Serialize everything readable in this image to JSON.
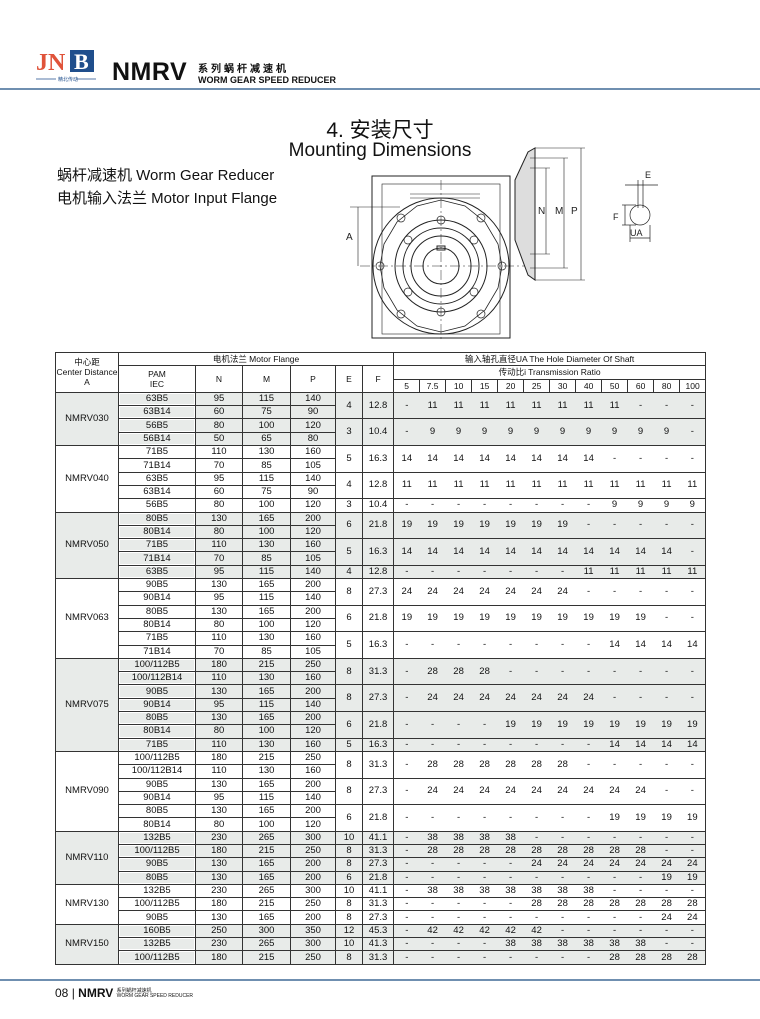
{
  "header": {
    "logo_text": "JNB",
    "logo_sub": "精北传动",
    "brand": "NMRV",
    "brand_cn": "系列蜗杆减速机",
    "brand_en": "WORM GEAR SPEED REDUCER",
    "accent_color": "#6f8fb0"
  },
  "section": {
    "title_cn": "4. 安装尺寸",
    "title_en": "Mounting Dimensions",
    "subtitle1": "蜗杆减速机 Worm Gear Reducer",
    "subtitle2": "电机输入法兰 Motor Input Flange"
  },
  "diagram": {
    "label_a": "A",
    "label_n": "N",
    "label_m": "M",
    "label_p": "P",
    "label_e": "E",
    "label_f": "F",
    "label_ua": "UA"
  },
  "table": {
    "h_center_cn": "中心距",
    "h_center_en": "Center Distance",
    "h_center_a": "A",
    "h_flange": "电机法兰 Motor Flange",
    "h_pam": "PAM",
    "h_iec": "IEC",
    "h_n": "N",
    "h_m": "M",
    "h_p": "P",
    "h_e": "E",
    "h_f": "F",
    "h_shaft": "输入轴孔直径UA  The Hole Diameter Of Shaft",
    "h_ratio": "传动比i  Transmission Ratio",
    "ratios": [
      "5",
      "7.5",
      "10",
      "15",
      "20",
      "25",
      "30",
      "40",
      "50",
      "60",
      "80",
      "100"
    ],
    "groups": [
      {
        "model": "NMRV030",
        "blocks": [
          {
            "e": "4",
            "f": "12.8",
            "ua": [
              "-",
              "11",
              "11",
              "11",
              "11",
              "11",
              "11",
              "11",
              "11",
              "-",
              "-",
              "-"
            ],
            "flanges": [
              [
                "63B5",
                "95",
                "115",
                "140"
              ],
              [
                "63B14",
                "60",
                "75",
                "90"
              ]
            ]
          },
          {
            "e": "3",
            "f": "10.4",
            "ua": [
              "-",
              "9",
              "9",
              "9",
              "9",
              "9",
              "9",
              "9",
              "9",
              "9",
              "9",
              "-"
            ],
            "flanges": [
              [
                "56B5",
                "80",
                "100",
                "120"
              ],
              [
                "56B14",
                "50",
                "65",
                "80"
              ]
            ]
          }
        ]
      },
      {
        "model": "NMRV040",
        "blocks": [
          {
            "e": "5",
            "f": "16.3",
            "ua": [
              "14",
              "14",
              "14",
              "14",
              "14",
              "14",
              "14",
              "14",
              "-",
              "-",
              "-",
              "-"
            ],
            "flanges": [
              [
                "71B5",
                "110",
                "130",
                "160"
              ],
              [
                "71B14",
                "70",
                "85",
                "105"
              ]
            ]
          },
          {
            "e": "4",
            "f": "12.8",
            "ua": [
              "11",
              "11",
              "11",
              "11",
              "11",
              "11",
              "11",
              "11",
              "11",
              "11",
              "11",
              "11"
            ],
            "flanges": [
              [
                "63B5",
                "95",
                "115",
                "140"
              ],
              [
                "63B14",
                "60",
                "75",
                "90"
              ]
            ]
          },
          {
            "e": "3",
            "f": "10.4",
            "ua": [
              "-",
              "-",
              "-",
              "-",
              "-",
              "-",
              "-",
              "-",
              "9",
              "9",
              "9",
              "9"
            ],
            "flanges": [
              [
                "56B5",
                "80",
                "100",
                "120"
              ]
            ]
          }
        ]
      },
      {
        "model": "NMRV050",
        "blocks": [
          {
            "e": "6",
            "f": "21.8",
            "ua": [
              "19",
              "19",
              "19",
              "19",
              "19",
              "19",
              "19",
              "-",
              "-",
              "-",
              "-",
              "-"
            ],
            "flanges": [
              [
                "80B5",
                "130",
                "165",
                "200"
              ],
              [
                "80B14",
                "80",
                "100",
                "120"
              ]
            ]
          },
          {
            "e": "5",
            "f": "16.3",
            "ua": [
              "14",
              "14",
              "14",
              "14",
              "14",
              "14",
              "14",
              "14",
              "14",
              "14",
              "14",
              "-"
            ],
            "flanges": [
              [
                "71B5",
                "110",
                "130",
                "160"
              ],
              [
                "71B14",
                "70",
                "85",
                "105"
              ]
            ]
          },
          {
            "e": "4",
            "f": "12.8",
            "ua": [
              "-",
              "-",
              "-",
              "-",
              "-",
              "-",
              "-",
              "11",
              "11",
              "11",
              "11",
              "11"
            ],
            "flanges": [
              [
                "63B5",
                "95",
                "115",
                "140"
              ]
            ]
          }
        ]
      },
      {
        "model": "NMRV063",
        "blocks": [
          {
            "e": "8",
            "f": "27.3",
            "ua": [
              "24",
              "24",
              "24",
              "24",
              "24",
              "24",
              "24",
              "-",
              "-",
              "-",
              "-",
              "-"
            ],
            "flanges": [
              [
                "90B5",
                "130",
                "165",
                "200"
              ],
              [
                "90B14",
                "95",
                "115",
                "140"
              ]
            ]
          },
          {
            "e": "6",
            "f": "21.8",
            "ua": [
              "19",
              "19",
              "19",
              "19",
              "19",
              "19",
              "19",
              "19",
              "19",
              "19",
              "-",
              "-"
            ],
            "flanges": [
              [
                "80B5",
                "130",
                "165",
                "200"
              ],
              [
                "80B14",
                "80",
                "100",
                "120"
              ]
            ]
          },
          {
            "e": "5",
            "f": "16.3",
            "ua": [
              "-",
              "-",
              "-",
              "-",
              "-",
              "-",
              "-",
              "-",
              "14",
              "14",
              "14",
              "14"
            ],
            "flanges": [
              [
                "71B5",
                "110",
                "130",
                "160"
              ],
              [
                "71B14",
                "70",
                "85",
                "105"
              ]
            ]
          }
        ]
      },
      {
        "model": "NMRV075",
        "blocks": [
          {
            "e": "8",
            "f": "31.3",
            "ua": [
              "-",
              "28",
              "28",
              "28",
              "-",
              "-",
              "-",
              "-",
              "-",
              "-",
              "-",
              "-"
            ],
            "flanges": [
              [
                "100/112B5",
                "180",
                "215",
                "250"
              ],
              [
                "100/112B14",
                "110",
                "130",
                "160"
              ]
            ]
          },
          {
            "e": "8",
            "f": "27.3",
            "ua": [
              "-",
              "24",
              "24",
              "24",
              "24",
              "24",
              "24",
              "24",
              "-",
              "-",
              "-",
              "-"
            ],
            "flanges": [
              [
                "90B5",
                "130",
                "165",
                "200"
              ],
              [
                "90B14",
                "95",
                "115",
                "140"
              ]
            ]
          },
          {
            "e": "6",
            "f": "21.8",
            "ua": [
              "-",
              "-",
              "-",
              "-",
              "19",
              "19",
              "19",
              "19",
              "19",
              "19",
              "19",
              "19"
            ],
            "flanges": [
              [
                "80B5",
                "130",
                "165",
                "200"
              ],
              [
                "80B14",
                "80",
                "100",
                "120"
              ]
            ]
          },
          {
            "e": "5",
            "f": "16.3",
            "ua": [
              "-",
              "-",
              "-",
              "-",
              "-",
              "-",
              "-",
              "-",
              "14",
              "14",
              "14",
              "14"
            ],
            "flanges": [
              [
                "71B5",
                "110",
                "130",
                "160"
              ]
            ]
          }
        ]
      },
      {
        "model": "NMRV090",
        "blocks": [
          {
            "e": "8",
            "f": "31.3",
            "ua": [
              "-",
              "28",
              "28",
              "28",
              "28",
              "28",
              "28",
              "-",
              "-",
              "-",
              "-",
              "-"
            ],
            "flanges": [
              [
                "100/112B5",
                "180",
                "215",
                "250"
              ],
              [
                "100/112B14",
                "110",
                "130",
                "160"
              ]
            ]
          },
          {
            "e": "8",
            "f": "27.3",
            "ua": [
              "-",
              "24",
              "24",
              "24",
              "24",
              "24",
              "24",
              "24",
              "24",
              "24",
              "-",
              "-"
            ],
            "flanges": [
              [
                "90B5",
                "130",
                "165",
                "200"
              ],
              [
                "90B14",
                "95",
                "115",
                "140"
              ]
            ]
          },
          {
            "e": "6",
            "f": "21.8",
            "ua": [
              "-",
              "-",
              "-",
              "-",
              "-",
              "-",
              "-",
              "-",
              "19",
              "19",
              "19",
              "19"
            ],
            "flanges": [
              [
                "80B5",
                "130",
                "165",
                "200"
              ],
              [
                "80B14",
                "80",
                "100",
                "120"
              ]
            ]
          }
        ]
      },
      {
        "model": "NMRV110",
        "blocks": [
          {
            "e": "10",
            "f": "41.1",
            "ua": [
              "-",
              "38",
              "38",
              "38",
              "38",
              "-",
              "-",
              "-",
              "-",
              "-",
              "-",
              "-"
            ],
            "flanges": [
              [
                "132B5",
                "230",
                "265",
                "300"
              ]
            ]
          },
          {
            "e": "8",
            "f": "31.3",
            "ua": [
              "-",
              "28",
              "28",
              "28",
              "28",
              "28",
              "28",
              "28",
              "28",
              "28",
              "-",
              "-"
            ],
            "flanges": [
              [
                "100/112B5",
                "180",
                "215",
                "250"
              ]
            ]
          },
          {
            "e": "8",
            "f": "27.3",
            "ua": [
              "-",
              "-",
              "-",
              "-",
              "-",
              "24",
              "24",
              "24",
              "24",
              "24",
              "24",
              "24"
            ],
            "flanges": [
              [
                "90B5",
                "130",
                "165",
                "200"
              ]
            ]
          },
          {
            "e": "6",
            "f": "21.8",
            "ua": [
              "-",
              "-",
              "-",
              "-",
              "-",
              "-",
              "-",
              "-",
              "-",
              "-",
              "19",
              "19"
            ],
            "flanges": [
              [
                "80B5",
                "130",
                "165",
                "200"
              ]
            ]
          }
        ]
      },
      {
        "model": "NMRV130",
        "blocks": [
          {
            "e": "10",
            "f": "41.1",
            "ua": [
              "-",
              "38",
              "38",
              "38",
              "38",
              "38",
              "38",
              "38",
              "-",
              "-",
              "-",
              "-"
            ],
            "flanges": [
              [
                "132B5",
                "230",
                "265",
                "300"
              ]
            ]
          },
          {
            "e": "8",
            "f": "31.3",
            "ua": [
              "-",
              "-",
              "-",
              "-",
              "-",
              "28",
              "28",
              "28",
              "28",
              "28",
              "28",
              "28"
            ],
            "flanges": [
              [
                "100/112B5",
                "180",
                "215",
                "250"
              ]
            ]
          },
          {
            "e": "8",
            "f": "27.3",
            "ua": [
              "-",
              "-",
              "-",
              "-",
              "-",
              "-",
              "-",
              "-",
              "-",
              "-",
              "24",
              "24"
            ],
            "flanges": [
              [
                "90B5",
                "130",
                "165",
                "200"
              ]
            ]
          }
        ]
      },
      {
        "model": "NMRV150",
        "blocks": [
          {
            "e": "12",
            "f": "45.3",
            "ua": [
              "-",
              "42",
              "42",
              "42",
              "42",
              "42",
              "-",
              "-",
              "-",
              "-",
              "-",
              "-"
            ],
            "flanges": [
              [
                "160B5",
                "250",
                "300",
                "350"
              ]
            ]
          },
          {
            "e": "10",
            "f": "41.3",
            "ua": [
              "-",
              "-",
              "-",
              "-",
              "38",
              "38",
              "38",
              "38",
              "38",
              "38",
              "-",
              "-"
            ],
            "flanges": [
              [
                "132B5",
                "230",
                "265",
                "300"
              ]
            ]
          },
          {
            "e": "8",
            "f": "31.3",
            "ua": [
              "-",
              "-",
              "-",
              "-",
              "-",
              "-",
              "-",
              "-",
              "28",
              "28",
              "28",
              "28"
            ],
            "flanges": [
              [
                "100/112B5",
                "180",
                "215",
                "250"
              ]
            ]
          }
        ]
      }
    ]
  },
  "footer": {
    "page": "08",
    "brand": "NMRV",
    "brand_cn": "系列蜗杆减速机",
    "brand_en": "WORM GEAR SPEED REDUCER"
  }
}
